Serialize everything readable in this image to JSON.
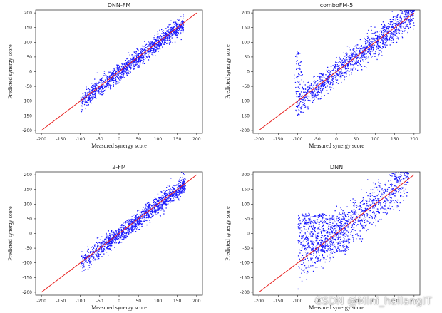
{
  "chart_data": [
    {
      "type": "scatter",
      "title": "DNN-FM",
      "xlabel": "Measured synergy score",
      "ylabel": "Predicted synergy score",
      "xlim": [
        -215,
        215
      ],
      "ylim": [
        -210,
        210
      ],
      "xticks": [
        -200,
        -150,
        -100,
        -50,
        0,
        50,
        100,
        150,
        200
      ],
      "yticks": [
        -200,
        -150,
        -100,
        -50,
        0,
        50,
        100,
        150,
        200
      ],
      "reference_line": {
        "from": [
          -200,
          -200
        ],
        "to": [
          200,
          200
        ],
        "color": "#e8201e"
      },
      "point_color": "#1a1aff",
      "x_range": [
        -100,
        165
      ],
      "spread": 15
    },
    {
      "type": "scatter",
      "title": "comboFM-5",
      "xlabel": "Measured synergy score",
      "ylabel": "Predicted synergy score",
      "xlim": [
        -215,
        215
      ],
      "ylim": [
        -210,
        210
      ],
      "xticks": [
        -200,
        -150,
        -100,
        -50,
        0,
        50,
        100,
        150,
        200
      ],
      "yticks": [
        -200,
        -150,
        -100,
        -50,
        0,
        50,
        100,
        150,
        200
      ],
      "reference_line": {
        "from": [
          -200,
          -200
        ],
        "to": [
          200,
          200
        ],
        "color": "#e8201e"
      },
      "point_color": "#1a1aff",
      "x_range": [
        -100,
        200
      ],
      "spread": 22
    },
    {
      "type": "scatter",
      "title": "2-FM",
      "xlabel": "Measured synergy score",
      "ylabel": "Predicted synergy score",
      "xlim": [
        -215,
        215
      ],
      "ylim": [
        -210,
        210
      ],
      "xticks": [
        -200,
        -150,
        -100,
        -50,
        0,
        50,
        100,
        150,
        200
      ],
      "yticks": [
        -200,
        -150,
        -100,
        -50,
        0,
        50,
        100,
        150,
        200
      ],
      "reference_line": {
        "from": [
          -200,
          -200
        ],
        "to": [
          200,
          200
        ],
        "color": "#e8201e"
      },
      "point_color": "#1a1aff",
      "x_range": [
        -100,
        170
      ],
      "spread": 15
    },
    {
      "type": "scatter",
      "title": "DNN",
      "xlabel": "Measured synergy score",
      "ylabel": "Predicted synergy score",
      "xlim": [
        -215,
        215
      ],
      "ylim": [
        -210,
        210
      ],
      "xticks": [
        -200,
        -150,
        -100,
        -50,
        0,
        50,
        100,
        150,
        200
      ],
      "yticks": [
        -200,
        -150,
        -100,
        -50,
        0,
        50,
        100,
        150,
        200
      ],
      "reference_line": {
        "from": [
          -200,
          -200
        ],
        "to": [
          200,
          200
        ],
        "color": "#e8201e"
      },
      "point_color": "#1a1aff",
      "x_range": [
        -100,
        185
      ],
      "spread": 35
    }
  ],
  "watermark": "CSDN @Mini_hailangIT"
}
